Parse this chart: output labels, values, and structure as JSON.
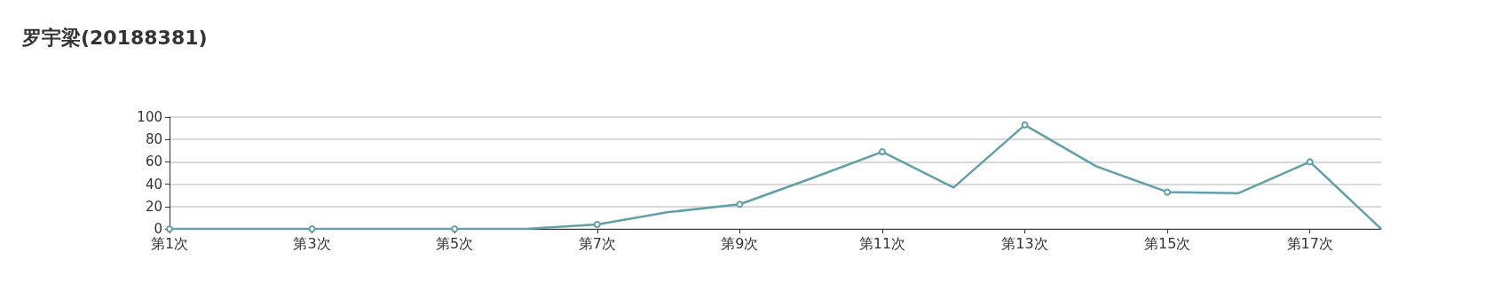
{
  "chart_data": {
    "type": "line",
    "title": "罗宇梁(20188381)",
    "categories": [
      "第1次",
      null,
      "第3次",
      null,
      "第5次",
      null,
      "第7次",
      null,
      "第9次",
      null,
      "第11次",
      null,
      "第13次",
      null,
      "第15次",
      null,
      "第17次",
      null
    ],
    "series": [
      {
        "color": "#61a0a8",
        "values": [
          0,
          0,
          0,
          0,
          0,
          0,
          4,
          15,
          22,
          45,
          69,
          37,
          93,
          56,
          33,
          32,
          60,
          0
        ]
      }
    ],
    "ylim": [
      0,
      100
    ],
    "yticks": [
      0,
      20,
      40,
      60,
      80,
      100
    ],
    "grid": "y",
    "marker": "circle",
    "line_style": "solid"
  }
}
